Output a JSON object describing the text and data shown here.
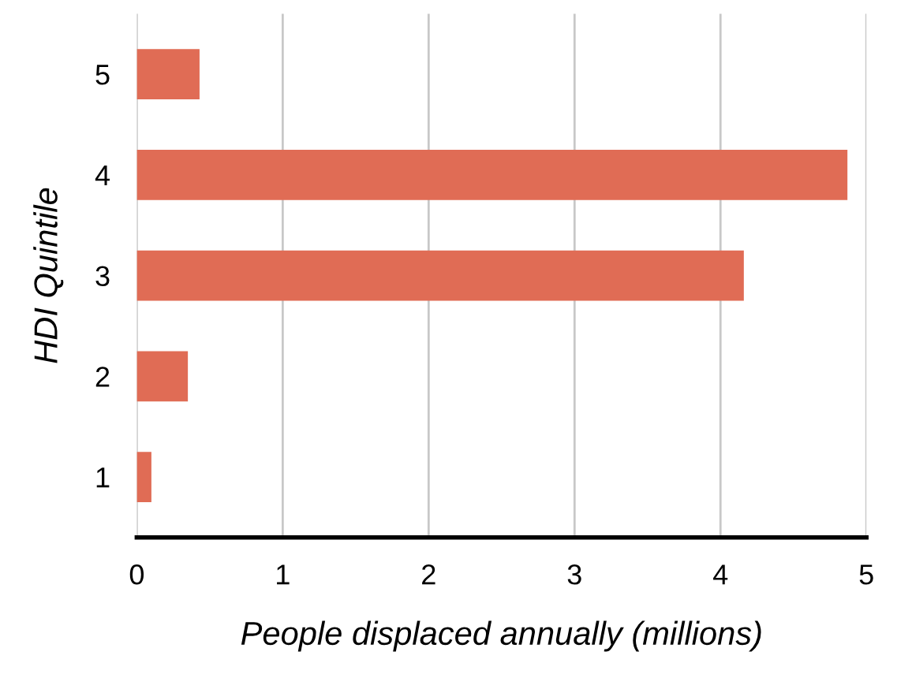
{
  "chart_data": {
    "type": "bar",
    "orientation": "horizontal",
    "xlabel": "People displaced annually (millions)",
    "ylabel": "HDI Quintile",
    "categories": [
      "5",
      "4",
      "3",
      "2",
      "1"
    ],
    "values": [
      0.43,
      4.87,
      4.16,
      0.35,
      0.1
    ],
    "color": "#e06c55",
    "xlim": [
      0,
      5
    ],
    "xticks": [
      0,
      1,
      2,
      3,
      4,
      5
    ],
    "grid": "x",
    "legend": false
  }
}
